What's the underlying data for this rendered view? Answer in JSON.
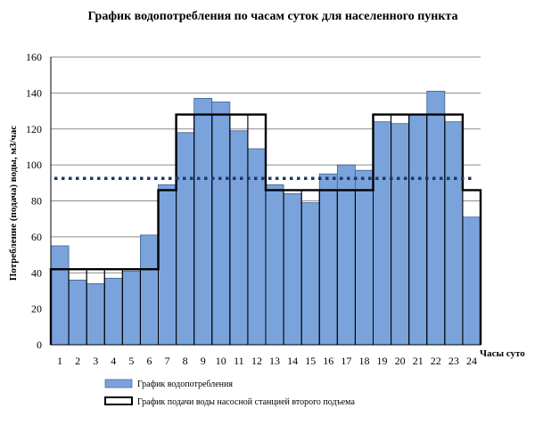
{
  "chart_data": {
    "type": "bar",
    "title": "График водопотребления  по часам суток для населенного  пункта",
    "xlabel": "Часы суто",
    "ylabel": "Потребление (подача) воды, м3/час",
    "ylim": [
      0,
      160
    ],
    "yticks": [
      "0",
      "20",
      "40",
      "60",
      "80",
      "100",
      "120",
      "140",
      "160"
    ],
    "grid": true,
    "legend_position": "bottom",
    "categories": [
      "1",
      "2",
      "3",
      "4",
      "5",
      "6",
      "7",
      "8",
      "9",
      "10",
      "11",
      "12",
      "13",
      "14",
      "15",
      "16",
      "17",
      "18",
      "19",
      "20",
      "21",
      "22",
      "23",
      "24"
    ],
    "series": [
      {
        "name": "График водопотребления",
        "kind": "bar",
        "color": "#7aa3dc",
        "values": [
          55,
          36,
          34,
          37,
          41,
          61,
          89,
          118,
          137,
          135,
          119,
          109,
          89,
          84,
          79,
          95,
          100,
          97,
          124,
          123,
          128,
          141,
          124,
          71
        ]
      },
      {
        "name": "График подачи воды насосной станцией второго подъема",
        "kind": "step-outline",
        "color": "#000000",
        "values": [
          42,
          42,
          42,
          42,
          42,
          42,
          86,
          128,
          128,
          128,
          128,
          128,
          86,
          86,
          86,
          86,
          86,
          86,
          128,
          128,
          128,
          128,
          128,
          86
        ]
      }
    ],
    "average_line": {
      "value": 92.5,
      "style": "dotted",
      "color": "#1f3864"
    }
  }
}
